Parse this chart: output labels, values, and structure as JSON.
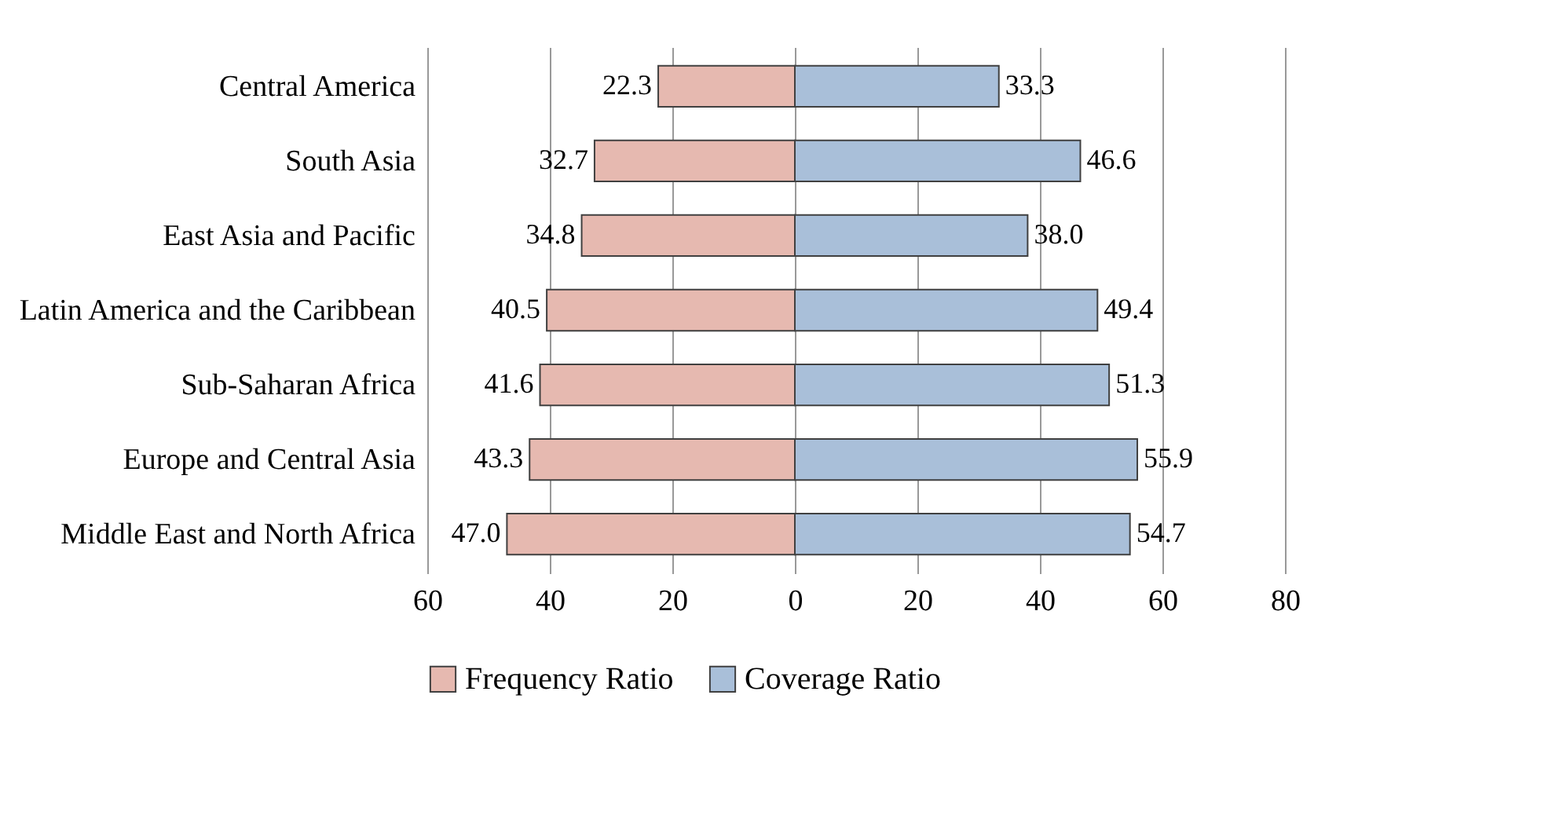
{
  "chart_data": {
    "type": "bar",
    "orientation": "horizontal",
    "categories": [
      "Central America",
      "South Asia",
      "East Asia and Pacific",
      "Latin America and the Caribbean",
      "Sub-Saharan Africa",
      "Europe and Central Asia",
      "Middle East and North Africa"
    ],
    "series": [
      {
        "name": "Frequency Ratio",
        "color": "#e6b9b0",
        "values": [
          22.3,
          32.7,
          34.8,
          40.5,
          41.6,
          43.3,
          47.0
        ],
        "base": [
          -22.3,
          -32.7,
          -34.8,
          -40.5,
          -41.6,
          -43.3,
          -47.0
        ],
        "value_labels": [
          "22.3",
          "32.7",
          "34.8",
          "40.5",
          "41.6",
          "43.3",
          "47.0"
        ]
      },
      {
        "name": "Coverage Ratio",
        "color": "#a9bfd9",
        "values": [
          33.3,
          46.6,
          38.0,
          49.4,
          51.3,
          55.9,
          54.7
        ],
        "value_labels": [
          "33.3",
          "46.6",
          "38.0",
          "49.4",
          "51.3",
          "55.9",
          "54.7"
        ]
      }
    ],
    "xlim": [
      -60,
      80
    ],
    "xticks": [
      {
        "value": -60,
        "label": "60"
      },
      {
        "value": -40,
        "label": "40"
      },
      {
        "value": -20,
        "label": "20"
      },
      0,
      20,
      40,
      60,
      80
    ],
    "grid": "x",
    "legend": "bottom"
  }
}
